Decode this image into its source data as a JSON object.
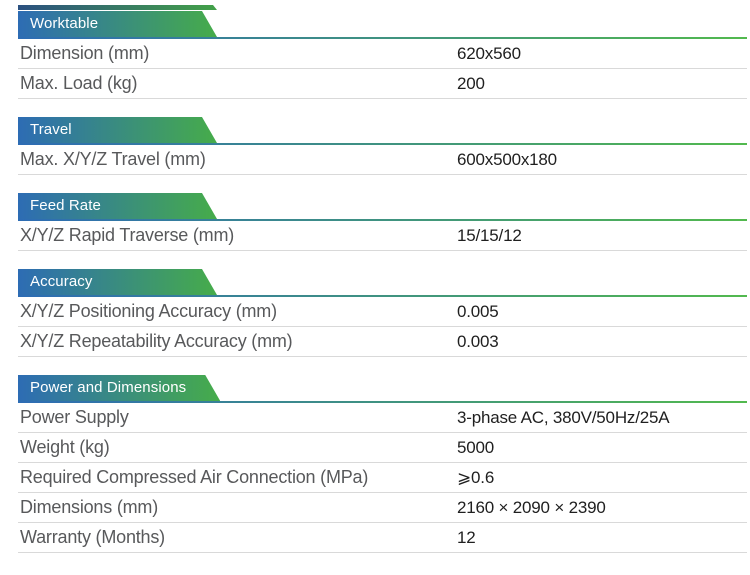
{
  "theme": {
    "ribbon_start": "#2d6cb4",
    "ribbon_end": "#46ac4a",
    "underline_start": "#2d6cb4",
    "underline_end": "#52b94e",
    "remnant_start": "#2b5080",
    "remnant_end": "#43a148",
    "label_color": "#58595b",
    "value_color": "#1f1f1f",
    "divider_color": "#d9d9d9",
    "ribbon_text": "#ffffff"
  },
  "sections": [
    {
      "title": "Worktable",
      "rows": [
        {
          "label": "Dimension (mm)",
          "value": "620x560"
        },
        {
          "label": "Max. Load (kg)",
          "value": "200"
        }
      ]
    },
    {
      "title": "Travel",
      "rows": [
        {
          "label": "Max. X/Y/Z Travel (mm)",
          "value": "600x500x180"
        }
      ]
    },
    {
      "title": "Feed Rate",
      "rows": [
        {
          "label": "X/Y/Z Rapid Traverse (mm)",
          "value": "15/15/12"
        }
      ]
    },
    {
      "title": "Accuracy",
      "rows": [
        {
          "label": "X/Y/Z Positioning Accuracy (mm)",
          "value": "0.005"
        },
        {
          "label": "X/Y/Z Repeatability Accuracy (mm)",
          "value": "0.003"
        }
      ]
    },
    {
      "title": "Power and Dimensions",
      "rows": [
        {
          "label": "Power Supply",
          "value": "3-phase AC, 380V/50Hz/25A"
        },
        {
          "label": "Weight (kg)",
          "value": "5000"
        },
        {
          "label": "Required Compressed Air Connection (MPa)",
          "value": "⩾0.6"
        },
        {
          "label": "Dimensions (mm)",
          "value": "2160 × 2090 × 2390"
        },
        {
          "label": "Warranty (Months)",
          "value": "12"
        }
      ]
    }
  ]
}
